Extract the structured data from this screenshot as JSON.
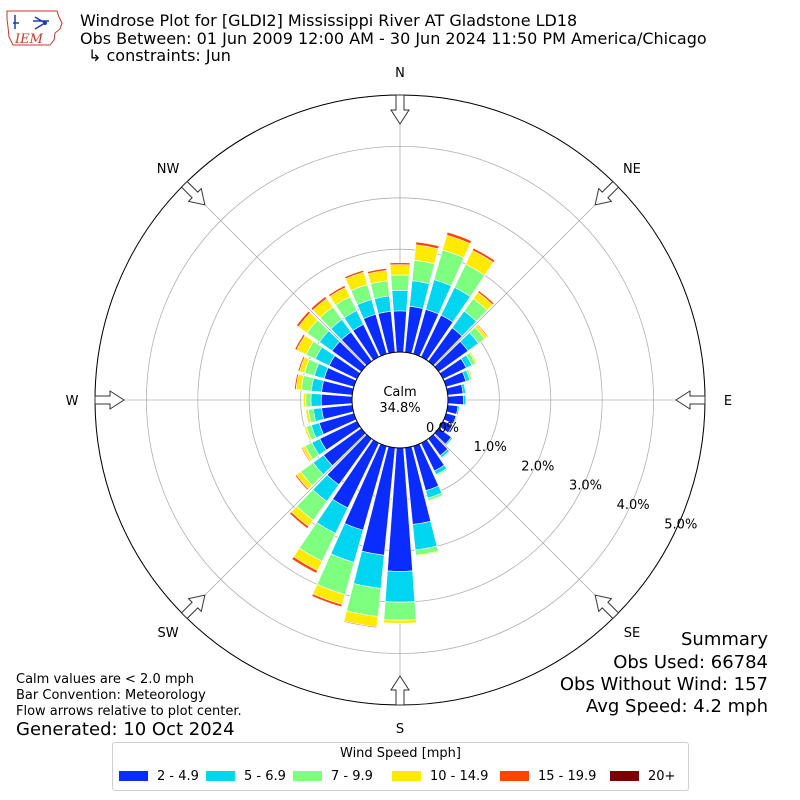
{
  "header": {
    "title": "Windrose Plot for [GLDI2] Mississippi River  AT Gladstone LD18",
    "subtitle": "Obs Between: 01 Jun 2009 12:00 AM - 30 Jun 2024 11:50 PM America/Chicago",
    "constraints": "↳ constraints: Jun",
    "logo_text": "IEM"
  },
  "summary": {
    "heading": "Summary",
    "obs_used": "Obs Used: 66784",
    "obs_without_wind": "Obs Without Wind: 157",
    "avg_speed": "Avg Speed: 4.2 mph"
  },
  "notes": {
    "calm_note": "Calm values are < 2.0 mph",
    "bar_convention": "Bar Convention: Meteorology",
    "flow_arrows": "Flow arrows relative to plot center.",
    "generated": "Generated: 10 Oct 2024"
  },
  "chart_data": {
    "type": "windrose",
    "directions_deg": [
      0,
      10,
      20,
      30,
      40,
      50,
      60,
      70,
      80,
      90,
      100,
      110,
      120,
      130,
      140,
      150,
      160,
      170,
      180,
      190,
      200,
      210,
      220,
      230,
      240,
      250,
      260,
      270,
      280,
      290,
      300,
      310,
      320,
      330,
      340,
      350
    ],
    "calm_label": "Calm",
    "calm_value": "34.8%",
    "rlim": [
      0,
      5.0
    ],
    "ring_labels": [
      "0.0%",
      "1.0%",
      "2.0%",
      "3.0%",
      "4.0%",
      "5.0%"
    ],
    "ring_values": [
      0,
      1,
      2,
      3,
      4,
      5
    ],
    "compass_labels": [
      {
        "label": "N",
        "deg": 0
      },
      {
        "label": "NE",
        "deg": 45
      },
      {
        "label": "E",
        "deg": 90
      },
      {
        "label": "SE",
        "deg": 135
      },
      {
        "label": "S",
        "deg": 180
      },
      {
        "label": "SW",
        "deg": 225
      },
      {
        "label": "W",
        "deg": 270
      },
      {
        "label": "NW",
        "deg": 315
      }
    ],
    "legend_title": "Wind Speed [mph]",
    "series": [
      {
        "name": "2 - 4.9",
        "color": "#0a2cff",
        "values": [
          0.8,
          0.9,
          0.9,
          0.9,
          0.8,
          0.7,
          0.5,
          0.4,
          0.3,
          0.3,
          0.2,
          0.2,
          0.2,
          0.3,
          0.4,
          0.6,
          0.9,
          1.5,
          2.4,
          2.1,
          1.7,
          1.4,
          1.1,
          0.9,
          0.8,
          0.7,
          0.6,
          0.6,
          0.6,
          0.6,
          0.6,
          0.7,
          0.7,
          0.7,
          0.8,
          0.8
        ]
      },
      {
        "name": "5 - 6.9",
        "color": "#00d5f0",
        "values": [
          0.4,
          0.5,
          0.6,
          0.6,
          0.4,
          0.25,
          0.12,
          0.08,
          0.05,
          0.05,
          0.03,
          0.02,
          0.02,
          0.03,
          0.05,
          0.08,
          0.15,
          0.5,
          0.6,
          0.65,
          0.65,
          0.55,
          0.4,
          0.25,
          0.17,
          0.16,
          0.16,
          0.2,
          0.2,
          0.2,
          0.3,
          0.3,
          0.3,
          0.3,
          0.3,
          0.3
        ]
      },
      {
        "name": "7 - 9.9",
        "color": "#7fff7f",
        "values": [
          0.3,
          0.4,
          0.6,
          0.5,
          0.3,
          0.15,
          0.08,
          0.04,
          0.02,
          0.01,
          0.01,
          0.01,
          0.01,
          0.01,
          0.02,
          0.03,
          0.05,
          0.1,
          0.35,
          0.55,
          0.65,
          0.6,
          0.45,
          0.3,
          0.15,
          0.1,
          0.1,
          0.1,
          0.2,
          0.2,
          0.2,
          0.3,
          0.3,
          0.3,
          0.3,
          0.3
        ]
      },
      {
        "name": "10 - 14.9",
        "color": "#ffea00",
        "values": [
          0.2,
          0.3,
          0.3,
          0.3,
          0.15,
          0.06,
          0.03,
          0.02,
          0.01,
          0.0,
          0.0,
          0.0,
          0.0,
          0.0,
          0.0,
          0.01,
          0.01,
          0.02,
          0.06,
          0.2,
          0.2,
          0.2,
          0.15,
          0.1,
          0.06,
          0.04,
          0.05,
          0.05,
          0.1,
          0.1,
          0.2,
          0.2,
          0.2,
          0.2,
          0.25,
          0.2
        ]
      },
      {
        "name": "15 - 19.9",
        "color": "#ff4500",
        "values": [
          0.04,
          0.06,
          0.06,
          0.05,
          0.04,
          0.02,
          0.01,
          0.0,
          0.0,
          0.0,
          0.0,
          0.0,
          0.0,
          0.0,
          0.0,
          0.0,
          0.0,
          0.0,
          0.0,
          0.02,
          0.05,
          0.06,
          0.05,
          0.03,
          0.02,
          0.01,
          0.01,
          0.01,
          0.03,
          0.03,
          0.04,
          0.05,
          0.05,
          0.04,
          0.04,
          0.04
        ]
      },
      {
        "name": "20+",
        "color": "#7f0000",
        "values": [
          0.0,
          0.01,
          0.01,
          0.01,
          0.0,
          0.0,
          0.0,
          0.0,
          0.0,
          0.0,
          0.0,
          0.0,
          0.0,
          0.0,
          0.0,
          0.0,
          0.0,
          0.0,
          0.0,
          0.0,
          0.01,
          0.01,
          0.01,
          0.0,
          0.0,
          0.0,
          0.0,
          0.0,
          0.0,
          0.0,
          0.01,
          0.01,
          0.0,
          0.0,
          0.0,
          0.0
        ]
      }
    ]
  }
}
